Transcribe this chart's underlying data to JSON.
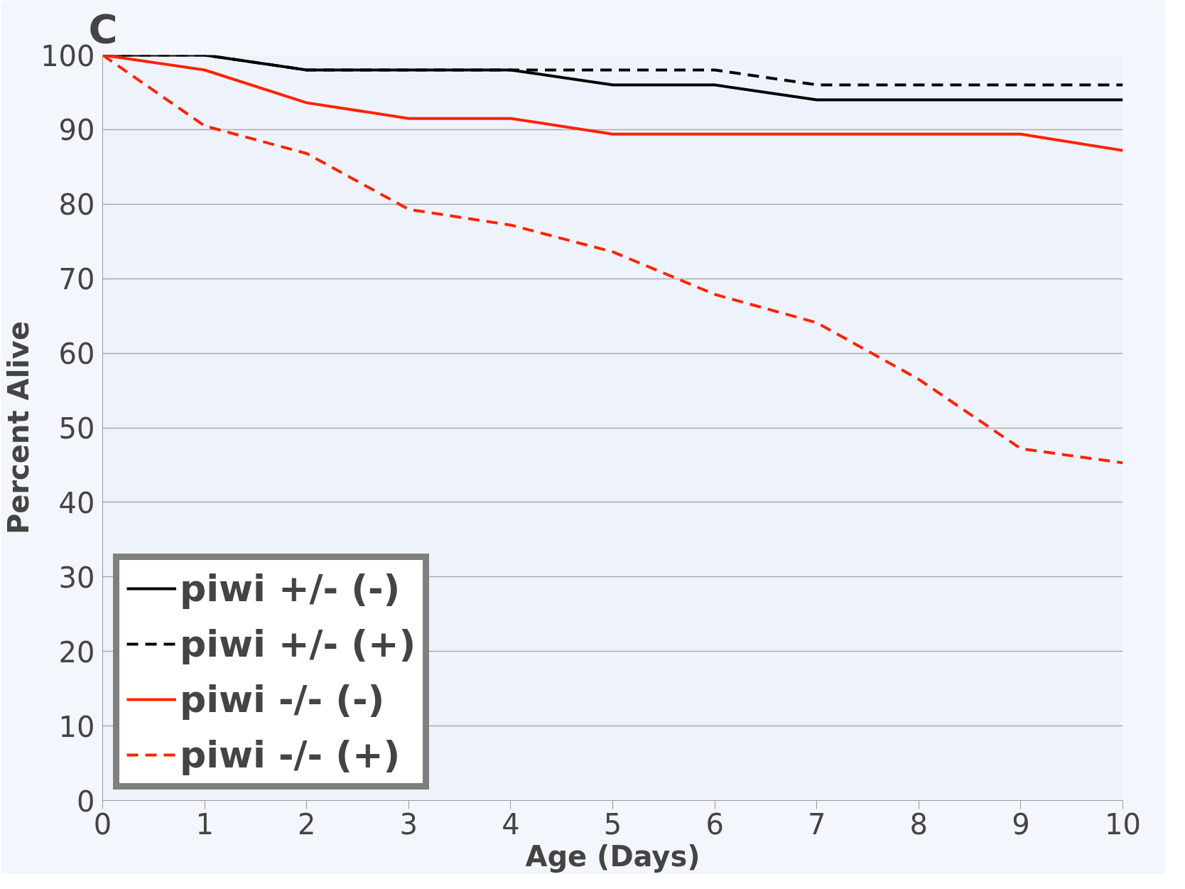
{
  "chart_data": {
    "type": "line",
    "xlabel": "Age (Days)",
    "ylabel": "Percent Alive",
    "annotations": [
      "C"
    ],
    "x": [
      0,
      1,
      2,
      3,
      4,
      5,
      6,
      7,
      8,
      9,
      10
    ],
    "xlim": [
      0,
      10
    ],
    "xticks": [
      0,
      1,
      2,
      3,
      4,
      5,
      6,
      7,
      8,
      9,
      10
    ],
    "ylim": [
      0,
      100
    ],
    "yticks": [
      0,
      10,
      20,
      30,
      40,
      50,
      60,
      70,
      80,
      90,
      100
    ],
    "grid": "y",
    "legend": "bottom left",
    "marker": "none",
    "series": [
      {
        "name": "piwi +/- (-)",
        "color": "#000000",
        "line_style": "solid",
        "values": [
          100,
          100,
          98,
          98,
          98,
          96,
          96,
          94,
          94,
          94,
          94
        ]
      },
      {
        "name": "piwi +/- (+)",
        "color": "#000000",
        "line_style": "dashed",
        "values": [
          100,
          100,
          98,
          98,
          98,
          98,
          98,
          96,
          96,
          96,
          96
        ]
      },
      {
        "name": "piwi -/- (-)",
        "color": "#ff2200",
        "line_style": "solid",
        "values": [
          100,
          98,
          93.6,
          91.5,
          91.5,
          89.4,
          89.4,
          89.4,
          89.4,
          89.4,
          87.2
        ]
      },
      {
        "name": "piwi -/- (+)",
        "color": "#ff2200",
        "line_style": "dashed",
        "values": [
          100,
          90.5,
          86.8,
          79.3,
          77.2,
          73.6,
          67.9,
          64.1,
          56.5,
          47.2,
          45.3
        ]
      }
    ]
  }
}
